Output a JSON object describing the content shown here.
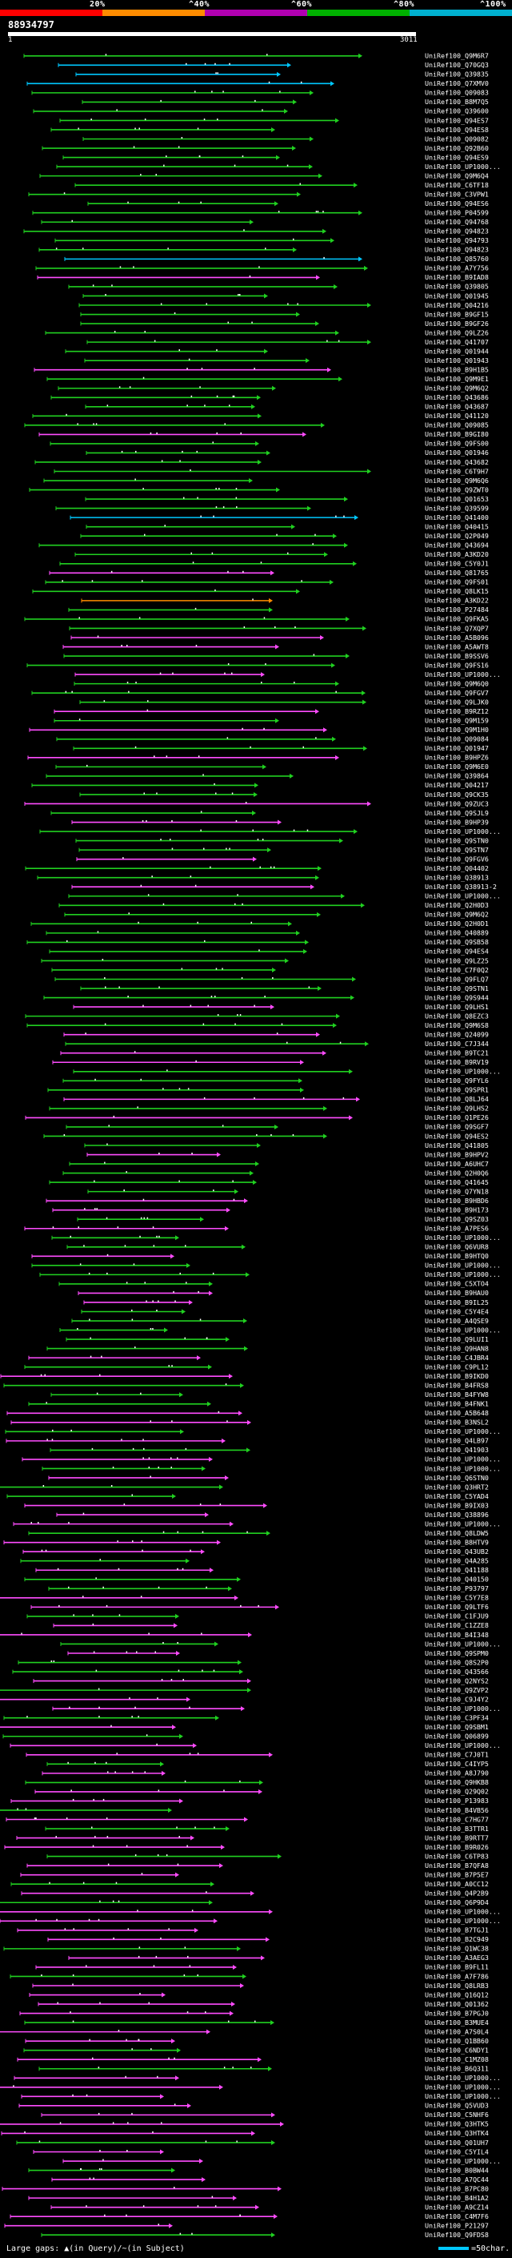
{
  "query": {
    "id": "88934797",
    "start": "1",
    "end": "3011"
  },
  "identity_scale": {
    "labels": [
      "20%",
      "^40%",
      "^60%",
      "^80%",
      "^100%"
    ],
    "colors": [
      "#ff0000",
      "#ff8c00",
      "#b000b0",
      "#00b000",
      "#00b0d0"
    ]
  },
  "legend": {
    "gaps_prefix": "Large gaps: ",
    "gaps_query": "(in Query)",
    "gaps_sep": "/~",
    "gaps_subject": "(in Subject)",
    "scale_text": "=50char."
  },
  "hit_colors": {
    "cyan": "#00c8ff",
    "green": "#20d020",
    "magenta": "#ff4cff",
    "orange": "#ff8c00"
  },
  "hits": [
    {
      "label": "UniRef100_Q9M6R7",
      "color": "green"
    },
    {
      "label": "UniRef100_Q70GQ3",
      "color": "cyan"
    },
    {
      "label": "UniRef100_Q39835",
      "color": "cyan"
    },
    {
      "label": "UniRef100_Q7XMV0",
      "color": "cyan"
    },
    {
      "label": "UniRef100_Q09083",
      "color": "green"
    },
    {
      "label": "UniRef100_B8M7Q5",
      "color": "green"
    },
    {
      "label": "UniRef100_Q39600",
      "color": "green"
    },
    {
      "label": "UniRef100_Q94ES7",
      "color": "green"
    },
    {
      "label": "UniRef100_Q94ES8",
      "color": "green"
    },
    {
      "label": "UniRef100_Q09082",
      "color": "green"
    },
    {
      "label": "UniRef100_Q92B60",
      "color": "green"
    },
    {
      "label": "UniRef100_Q94ES9",
      "color": "green"
    },
    {
      "label": "UniRef100_UP1000...",
      "color": "green"
    },
    {
      "label": "UniRef100_Q9M6Q4",
      "color": "green"
    },
    {
      "label": "UniRef100_C6TF18",
      "color": "green"
    },
    {
      "label": "UniRef100_C3VPW1",
      "color": "green"
    },
    {
      "label": "UniRef100_Q94ES6",
      "color": "green"
    },
    {
      "label": "UniRef100_P04599",
      "color": "green"
    },
    {
      "label": "UniRef100_Q94768",
      "color": "green"
    },
    {
      "label": "UniRef100_Q94823",
      "color": "green"
    },
    {
      "label": "UniRef100_Q94793",
      "color": "green"
    },
    {
      "label": "UniRef100_Q94823",
      "color": "green"
    },
    {
      "label": "UniRef100_Q85760",
      "color": "cyan"
    },
    {
      "label": "UniRef100_A7Y756",
      "color": "green"
    },
    {
      "label": "UniRef100_B9IAD8",
      "color": "magenta"
    },
    {
      "label": "UniRef100_Q39805",
      "color": "green"
    },
    {
      "label": "UniRef100_Q01945",
      "color": "green"
    },
    {
      "label": "UniRef100_Q04216",
      "color": "green"
    },
    {
      "label": "UniRef100_B9GF15",
      "color": "green"
    },
    {
      "label": "UniRef100_B9GF26",
      "color": "green"
    },
    {
      "label": "UniRef100_Q9LZ26",
      "color": "green"
    },
    {
      "label": "UniRef100_Q41707",
      "color": "green"
    },
    {
      "label": "UniRef100_Q01944",
      "color": "green"
    },
    {
      "label": "UniRef100_Q01943",
      "color": "green"
    },
    {
      "label": "UniRef100_B9H1B5",
      "color": "magenta"
    },
    {
      "label": "UniRef100_Q9M9E1",
      "color": "green"
    },
    {
      "label": "UniRef100_Q9M6Q2",
      "color": "green"
    },
    {
      "label": "UniRef100_Q43686",
      "color": "green"
    },
    {
      "label": "UniRef100_Q43687",
      "color": "green"
    },
    {
      "label": "UniRef100_Q41120",
      "color": "green"
    },
    {
      "label": "UniRef100_Q09085",
      "color": "green"
    },
    {
      "label": "UniRef100_B9GI80",
      "color": "magenta"
    },
    {
      "label": "UniRef100_Q9FS00",
      "color": "green"
    },
    {
      "label": "UniRef100_Q01946",
      "color": "green"
    },
    {
      "label": "UniRef100_Q43682",
      "color": "green"
    },
    {
      "label": "UniRef100_C6T9H7",
      "color": "green"
    },
    {
      "label": "UniRef100_Q9M6Q6",
      "color": "green"
    },
    {
      "label": "UniRef100_Q9ZWT0",
      "color": "green"
    },
    {
      "label": "UniRef100_Q01653",
      "color": "green"
    },
    {
      "label": "UniRef100_Q39599",
      "color": "green"
    },
    {
      "label": "UniRef100_Q41400",
      "color": "cyan"
    },
    {
      "label": "UniRef100_Q40415",
      "color": "green"
    },
    {
      "label": "UniRef100_Q2P049",
      "color": "green"
    },
    {
      "label": "UniRef100_Q43694",
      "color": "green"
    },
    {
      "label": "UniRef100_A3KD20",
      "color": "green"
    },
    {
      "label": "UniRef100_C5Y0J1",
      "color": "green"
    },
    {
      "label": "UniRef100_Q81765",
      "color": "magenta"
    },
    {
      "label": "UniRef100_Q9FS01",
      "color": "green"
    },
    {
      "label": "UniRef100_Q8LK15",
      "color": "green"
    },
    {
      "label": "UniRef100_A3KD22",
      "color": "orange"
    },
    {
      "label": "UniRef100_P27484",
      "color": "green"
    },
    {
      "label": "UniRef100_Q9FKA5",
      "color": "green"
    },
    {
      "label": "UniRef100_Q7XQP7",
      "color": "green"
    },
    {
      "label": "UniRef100_A5B096",
      "color": "magenta"
    },
    {
      "label": "UniRef100_A5AWT8",
      "color": "magenta"
    },
    {
      "label": "UniRef100_B9SSV6",
      "color": "green"
    },
    {
      "label": "UniRef100_Q9FS16",
      "color": "green"
    },
    {
      "label": "UniRef100_UP1000...",
      "color": "magenta"
    },
    {
      "label": "UniRef100_Q9M6Q0",
      "color": "green"
    },
    {
      "label": "UniRef100_Q9FGV7",
      "color": "green"
    },
    {
      "label": "UniRef100_Q9LJK0",
      "color": "green"
    },
    {
      "label": "UniRef100_B9RZ12",
      "color": "magenta"
    },
    {
      "label": "UniRef100_Q9M159",
      "color": "green"
    },
    {
      "label": "UniRef100_Q9M1H0",
      "color": "magenta"
    },
    {
      "label": "UniRef100_Q09084",
      "color": "green"
    },
    {
      "label": "UniRef100_Q01947",
      "color": "green"
    },
    {
      "label": "UniRef100_B9HPZ6",
      "color": "magenta"
    },
    {
      "label": "UniRef100_Q9M6E0",
      "color": "green"
    },
    {
      "label": "UniRef100_Q39864",
      "color": "green"
    },
    {
      "label": "UniRef100_Q04217",
      "color": "green"
    },
    {
      "label": "UniRef100_Q9CK35",
      "color": "green"
    },
    {
      "label": "UniRef100_Q9ZUC3",
      "color": "magenta"
    },
    {
      "label": "UniRef100_Q9SJL9",
      "color": "green"
    },
    {
      "label": "UniRef100_B9HP39",
      "color": "magenta"
    },
    {
      "label": "UniRef100_UP1000...",
      "color": "green"
    },
    {
      "label": "UniRef100_Q9STN0",
      "color": "green"
    },
    {
      "label": "UniRef100_Q9STN7",
      "color": "green"
    },
    {
      "label": "UniRef100_Q9FGV6",
      "color": "magenta"
    },
    {
      "label": "UniRef100_Q04402",
      "color": "green"
    },
    {
      "label": "UniRef100_Q38913",
      "color": "green"
    },
    {
      "label": "UniRef100_Q38913-2",
      "color": "magenta"
    },
    {
      "label": "UniRef100_UP1000...",
      "color": "green"
    },
    {
      "label": "UniRef100_Q2H0D3",
      "color": "green"
    },
    {
      "label": "UniRef100_Q9M6Q2",
      "color": "green"
    },
    {
      "label": "UniRef100_Q2H0D1",
      "color": "green"
    },
    {
      "label": "UniRef100_Q40889",
      "color": "green"
    },
    {
      "label": "UniRef100_Q9SB58",
      "color": "green"
    },
    {
      "label": "UniRef100_Q94ES4",
      "color": "green"
    },
    {
      "label": "UniRef100_Q9LZ25",
      "color": "green"
    },
    {
      "label": "UniRef100_C7F0Q2",
      "color": "green"
    },
    {
      "label": "UniRef100_Q9FLQ7",
      "color": "green"
    },
    {
      "label": "UniRef100_Q9STN1",
      "color": "green"
    },
    {
      "label": "UniRef100_Q9S944",
      "color": "green"
    },
    {
      "label": "UniRef100_Q9LHS1",
      "color": "magenta"
    },
    {
      "label": "UniRef100_Q8EZC3",
      "color": "green"
    },
    {
      "label": "UniRef100_Q9M6S8",
      "color": "green"
    },
    {
      "label": "UniRef100_Q24099",
      "color": "magenta"
    },
    {
      "label": "UniRef100_C7J344",
      "color": "green"
    },
    {
      "label": "UniRef100_B9TC21",
      "color": "magenta"
    },
    {
      "label": "UniRef100_B9RV19",
      "color": "magenta"
    },
    {
      "label": "UniRef100_UP1000...",
      "color": "green"
    },
    {
      "label": "UniRef100_Q9FYL6",
      "color": "green"
    },
    {
      "label": "UniRef100_Q9SPR1",
      "color": "green"
    },
    {
      "label": "UniRef100_Q8LJ64",
      "color": "magenta"
    },
    {
      "label": "UniRef100_Q9LHS2",
      "color": "green"
    },
    {
      "label": "UniRef100_Q1PE26",
      "color": "magenta"
    },
    {
      "label": "UniRef100_Q9SGF7",
      "color": "green"
    },
    {
      "label": "UniRef100_Q94ES2",
      "color": "green"
    },
    {
      "label": "UniRef100_Q41805",
      "color": "green"
    },
    {
      "label": "UniRef100_B9HPV2",
      "color": "magenta"
    },
    {
      "label": "UniRef100_A6UHC7",
      "color": "green"
    },
    {
      "label": "UniRef100_Q2H0Q6",
      "color": "green"
    },
    {
      "label": "UniRef100_Q41645",
      "color": "green"
    },
    {
      "label": "UniRef100_Q7YN18",
      "color": "green"
    },
    {
      "label": "UniRef100_B9HBD6",
      "color": "magenta"
    },
    {
      "label": "UniRef100_B9H173",
      "color": "magenta"
    },
    {
      "label": "UniRef100_Q9SZ03",
      "color": "green"
    },
    {
      "label": "UniRef100_A7PES6",
      "color": "magenta"
    },
    {
      "label": "UniRef100_UP1000...",
      "color": "green"
    },
    {
      "label": "UniRef100_Q6VUR8",
      "color": "green"
    },
    {
      "label": "UniRef100_B9HTQ0",
      "color": "magenta"
    },
    {
      "label": "UniRef100_UP1000...",
      "color": "green"
    },
    {
      "label": "UniRef100_UP1000...",
      "color": "green"
    },
    {
      "label": "UniRef100_C5XTO4",
      "color": "green"
    },
    {
      "label": "UniRef100_B9HAU0",
      "color": "magenta"
    },
    {
      "label": "UniRef100_B9IL25",
      "color": "magenta"
    },
    {
      "label": "UniRef100_C5Y4E4",
      "color": "green"
    },
    {
      "label": "UniRef100_A4QSE9",
      "color": "green"
    },
    {
      "label": "UniRef100_UP1000...",
      "color": "green"
    },
    {
      "label": "UniRef100_Q9LUI1",
      "color": "green"
    },
    {
      "label": "UniRef100_Q9HAN8",
      "color": "green"
    },
    {
      "label": "UniRef100_C4JBR4",
      "color": "magenta"
    },
    {
      "label": "UniRef100_C9PL12",
      "color": "green"
    },
    {
      "label": "UniRef100_B9IKD0",
      "color": "magenta"
    },
    {
      "label": "UniRef100_B4FRS8",
      "color": "green"
    },
    {
      "label": "UniRef100_B4FYW8",
      "color": "green"
    },
    {
      "label": "UniRef100_B4FNK1",
      "color": "green"
    },
    {
      "label": "UniRef100_A5B648",
      "color": "magenta"
    },
    {
      "label": "UniRef100_B3NSL2",
      "color": "magenta"
    },
    {
      "label": "UniRef100_UP1000...",
      "color": "green"
    },
    {
      "label": "UniRef100_Q4LB97",
      "color": "magenta"
    },
    {
      "label": "UniRef100_Q41903",
      "color": "green"
    },
    {
      "label": "UniRef100_UP1000...",
      "color": "magenta"
    },
    {
      "label": "UniRef100_UP1000...",
      "color": "green"
    },
    {
      "label": "UniRef100_Q6STN0",
      "color": "magenta"
    },
    {
      "label": "UniRef100_Q3HRT2",
      "color": "green"
    },
    {
      "label": "UniRef100_C5YAD4",
      "color": "green"
    },
    {
      "label": "UniRef100_B9IX03",
      "color": "magenta"
    },
    {
      "label": "UniRef100_Q38896",
      "color": "magenta"
    },
    {
      "label": "UniRef100_UP1000...",
      "color": "magenta"
    },
    {
      "label": "UniRef100_Q8LDW5",
      "color": "green"
    },
    {
      "label": "UniRef100_B8HTV9",
      "color": "magenta"
    },
    {
      "label": "UniRef100_Q43UB2",
      "color": "magenta"
    },
    {
      "label": "UniRef100_Q4A285",
      "color": "green"
    },
    {
      "label": "UniRef100_Q41188",
      "color": "magenta"
    },
    {
      "label": "UniRef100_Q40150",
      "color": "green"
    },
    {
      "label": "UniRef100_P93797",
      "color": "green"
    },
    {
      "label": "UniRef100_C5Y7E8",
      "color": "magenta"
    },
    {
      "label": "UniRef100_Q9LTF6",
      "color": "magenta"
    },
    {
      "label": "UniRef100_C1FJU9",
      "color": "green"
    },
    {
      "label": "UniRef100_C1ZZE8",
      "color": "magenta"
    },
    {
      "label": "UniRef100_B4I348",
      "color": "magenta"
    },
    {
      "label": "UniRef100_UP1000...",
      "color": "green"
    },
    {
      "label": "UniRef100_Q9SPM0",
      "color": "magenta"
    },
    {
      "label": "UniRef100_Q8S2P0",
      "color": "green"
    },
    {
      "label": "UniRef100_Q43566",
      "color": "green"
    },
    {
      "label": "UniRef100_Q2NYS2",
      "color": "magenta"
    },
    {
      "label": "UniRef100_Q9ZVP2",
      "color": "green"
    },
    {
      "label": "UniRef100_C9J4Y2",
      "color": "magenta"
    },
    {
      "label": "UniRef100_UP1000...",
      "color": "magenta"
    },
    {
      "label": "UniRef100_C3PF34",
      "color": "green"
    },
    {
      "label": "UniRef100_Q9SBM1",
      "color": "magenta"
    },
    {
      "label": "UniRef100_Q06899",
      "color": "green"
    },
    {
      "label": "UniRef100_UP1000...",
      "color": "magenta"
    },
    {
      "label": "UniRef100_C7J0T1",
      "color": "magenta"
    },
    {
      "label": "UniRef100_C4IYP5",
      "color": "green"
    },
    {
      "label": "UniRef100_A8J790",
      "color": "magenta"
    },
    {
      "label": "UniRef100_Q9HKB8",
      "color": "green"
    },
    {
      "label": "UniRef100_Q29Q02",
      "color": "magenta"
    },
    {
      "label": "UniRef100_P13983",
      "color": "magenta"
    },
    {
      "label": "UniRef100_B4VB56",
      "color": "green"
    },
    {
      "label": "UniRef100_C7HG77",
      "color": "magenta"
    },
    {
      "label": "UniRef100_B3TTR1",
      "color": "green"
    },
    {
      "label": "UniRef100_B9RTT7",
      "color": "magenta"
    },
    {
      "label": "UniRef100_B9R026",
      "color": "magenta"
    },
    {
      "label": "UniRef100_C6TP83",
      "color": "green"
    },
    {
      "label": "UniRef100_B7QFA8",
      "color": "magenta"
    },
    {
      "label": "UniRef100_B7P5E7",
      "color": "magenta"
    },
    {
      "label": "UniRef100_A0CC12",
      "color": "green"
    },
    {
      "label": "UniRef100_Q4P2B9",
      "color": "magenta"
    },
    {
      "label": "UniRef100_Q6P9D4",
      "color": "green"
    },
    {
      "label": "UniRef100_UP1000...",
      "color": "magenta"
    },
    {
      "label": "UniRef100_UP1000...",
      "color": "magenta"
    },
    {
      "label": "UniRef100_B7TGJ1",
      "color": "magenta"
    },
    {
      "label": "UniRef100_B2C949",
      "color": "magenta"
    },
    {
      "label": "UniRef100_Q1WC38",
      "color": "green"
    },
    {
      "label": "UniRef100_A3AEG3",
      "color": "magenta"
    },
    {
      "label": "UniRef100_B9FL11",
      "color": "magenta"
    },
    {
      "label": "UniRef100_A7F786",
      "color": "green"
    },
    {
      "label": "UniRef100_Q8LRB3",
      "color": "magenta"
    },
    {
      "label": "UniRef100_Q16Q12",
      "color": "magenta"
    },
    {
      "label": "UniRef100_Q01362",
      "color": "magenta"
    },
    {
      "label": "UniRef100_B7PGJ0",
      "color": "magenta"
    },
    {
      "label": "UniRef100_B3MUE4",
      "color": "green"
    },
    {
      "label": "UniRef100_A7S0L4",
      "color": "magenta"
    },
    {
      "label": "UniRef100_Q1BB60",
      "color": "magenta"
    },
    {
      "label": "UniRef100_C6NDY1",
      "color": "green"
    },
    {
      "label": "UniRef100_C1MZ08",
      "color": "magenta"
    },
    {
      "label": "UniRef100_B6Q311",
      "color": "green"
    },
    {
      "label": "UniRef100_UP1000...",
      "color": "magenta"
    },
    {
      "label": "UniRef100_UP1000...",
      "color": "magenta"
    },
    {
      "label": "UniRef100_UP1000...",
      "color": "magenta"
    },
    {
      "label": "UniRef100_Q5VUD3",
      "color": "magenta"
    },
    {
      "label": "UniRef100_C5NHF6",
      "color": "magenta"
    },
    {
      "label": "UniRef100_Q3HTK5",
      "color": "magenta"
    },
    {
      "label": "UniRef100_Q3HTK4",
      "color": "magenta"
    },
    {
      "label": "UniRef100_Q01UH7",
      "color": "green"
    },
    {
      "label": "UniRef100_C5YIL4",
      "color": "magenta"
    },
    {
      "label": "UniRef100_UP1000...",
      "color": "magenta"
    },
    {
      "label": "UniRef100_B0BW44",
      "color": "green"
    },
    {
      "label": "UniRef100_A7QC44",
      "color": "magenta"
    },
    {
      "label": "UniRef100_B7PC80",
      "color": "magenta"
    },
    {
      "label": "UniRef100_B4H1A2",
      "color": "magenta"
    },
    {
      "label": "UniRef100_A9CZ14",
      "color": "magenta"
    },
    {
      "label": "UniRef100_C4M7F6",
      "color": "magenta"
    },
    {
      "label": "UniRef100_P21297",
      "color": "magenta"
    },
    {
      "label": "UniRef100_Q9FDS8",
      "color": "green"
    }
  ]
}
